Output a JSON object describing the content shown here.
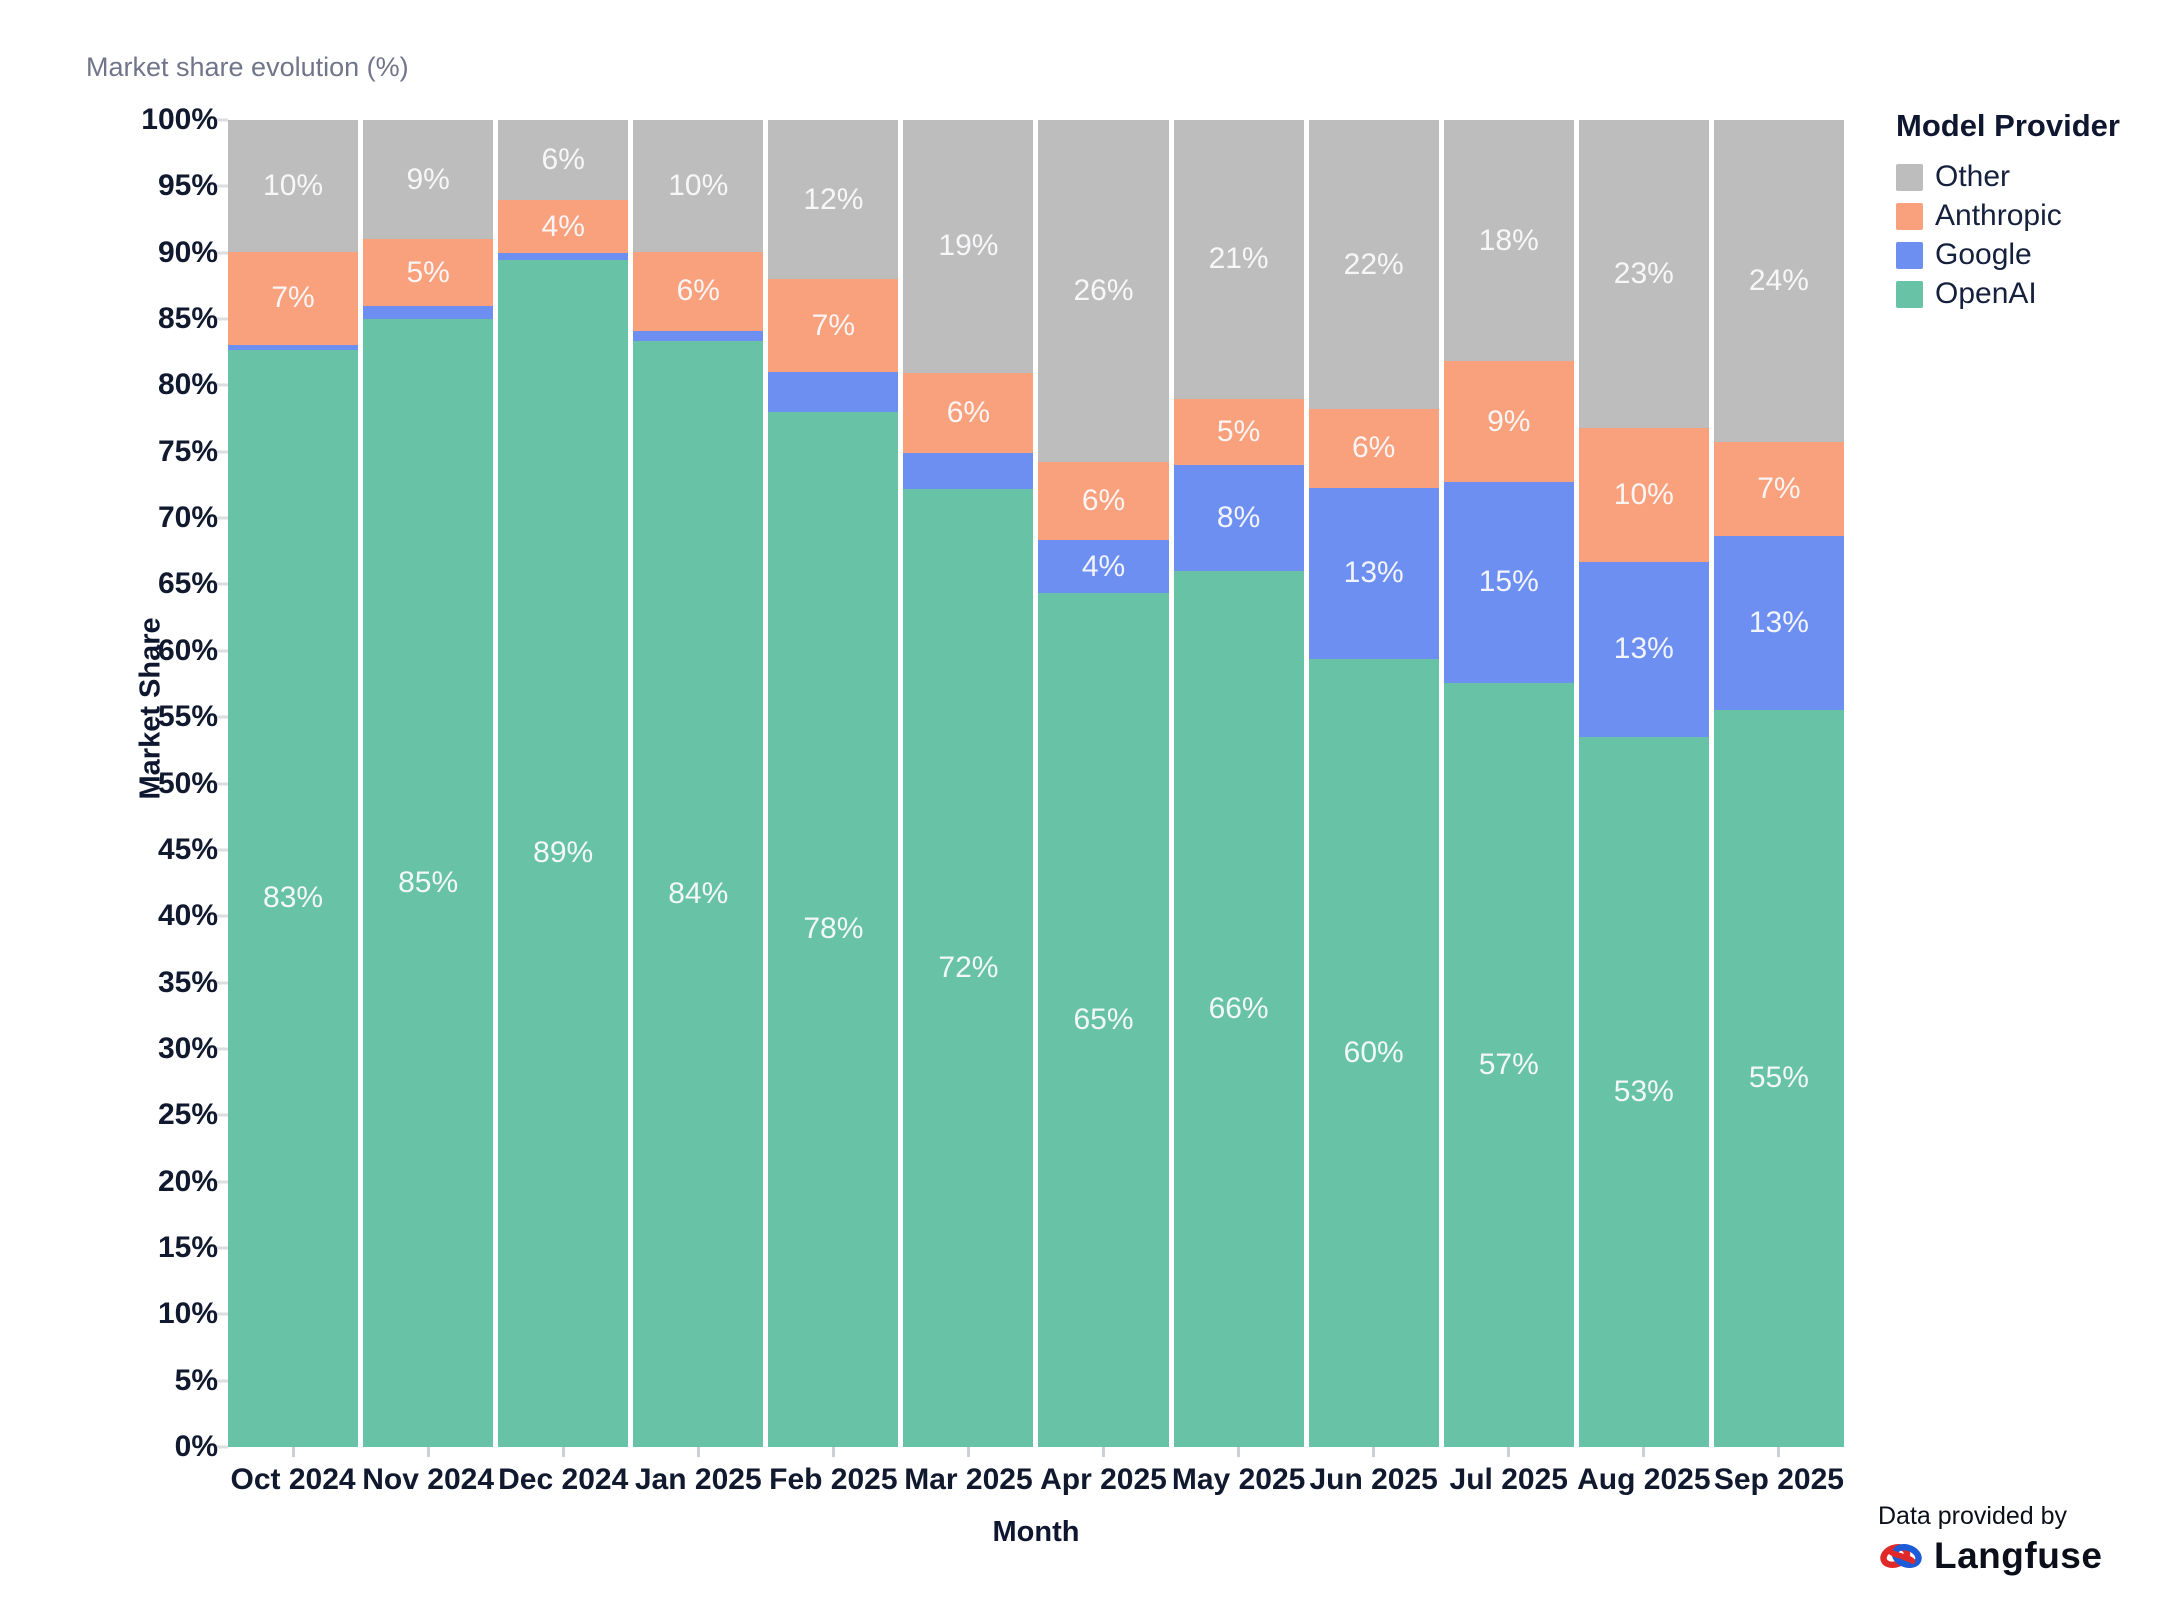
{
  "title": "Market share evolution (%)",
  "axes": {
    "x_label": "Month",
    "y_label": "Market Share",
    "y_tick_labels": [
      "0%",
      "5%",
      "10%",
      "15%",
      "20%",
      "25%",
      "30%",
      "35%",
      "40%",
      "45%",
      "50%",
      "55%",
      "60%",
      "65%",
      "70%",
      "75%",
      "80%",
      "85%",
      "90%",
      "95%",
      "100%"
    ]
  },
  "legend": {
    "title": "Model Provider",
    "items": [
      {
        "label": "Other",
        "color": "#bdbdbd"
      },
      {
        "label": "Anthropic",
        "color": "#f9a17c"
      },
      {
        "label": "Google",
        "color": "#6d8ff1"
      },
      {
        "label": "OpenAI",
        "color": "#68c2a6"
      }
    ]
  },
  "attribution": {
    "prefix": "Data provided by",
    "brand": "Langfuse"
  },
  "colors": {
    "openai_green": "#68c2a6",
    "google_blue": "#6d8ff1",
    "anthropic_orange": "#f9a17c",
    "other_gray": "#bdbdbd",
    "bar_label_text": "#fafafc",
    "axis_text": "#10192e",
    "title_text": "#70758a"
  },
  "chart_data": {
    "type": "bar",
    "stacked": true,
    "stack_order": "top-to-bottom",
    "title": "Market share evolution (%)",
    "xlabel": "Month",
    "ylabel": "Market Share",
    "ylim": [
      0,
      100
    ],
    "y_tick_step": 5,
    "grid": false,
    "legend_position": "right",
    "legend_title": "Model Provider",
    "categories": [
      "Oct 2024",
      "Nov 2024",
      "Dec 2024",
      "Jan 2025",
      "Feb 2025",
      "Mar 2025",
      "Apr 2025",
      "May 2025",
      "Jun 2025",
      "Jul 2025",
      "Aug 2025",
      "Sep 2025"
    ],
    "series": [
      {
        "name": "Other",
        "color": "#bdbdbd",
        "values": [
          10,
          9,
          6,
          10,
          12,
          19,
          26,
          21,
          22,
          18,
          23,
          24
        ],
        "data_labels": [
          "10%",
          "9%",
          "6%",
          "10%",
          "12%",
          "19%",
          "26%",
          "21%",
          "22%",
          "18%",
          "23%",
          "24%"
        ]
      },
      {
        "name": "Anthropic",
        "color": "#f9a17c",
        "values": [
          7,
          5,
          4,
          6,
          7,
          6,
          6,
          5,
          6,
          9,
          10,
          7
        ],
        "data_labels": [
          "7%",
          "5%",
          "4%",
          "6%",
          "7%",
          "6%",
          "6%",
          "5%",
          "6%",
          "9%",
          "10%",
          "7%"
        ]
      },
      {
        "name": "Google",
        "color": "#6d8ff1",
        "values": [
          0.4,
          1,
          0.5,
          0.8,
          3,
          2.7,
          4,
          8,
          13,
          15,
          13,
          13
        ],
        "data_labels": [
          null,
          null,
          null,
          null,
          null,
          null,
          "4%",
          "8%",
          "13%",
          "15%",
          "13%",
          "13%"
        ]
      },
      {
        "name": "OpenAI",
        "color": "#68c2a6",
        "values": [
          83,
          85,
          89,
          84,
          78,
          72,
          65,
          66,
          60,
          57,
          53,
          55
        ],
        "data_labels": [
          "83%",
          "85%",
          "89%",
          "84%",
          "78%",
          "72%",
          "65%",
          "66%",
          "60%",
          "57%",
          "53%",
          "55%"
        ]
      }
    ]
  }
}
